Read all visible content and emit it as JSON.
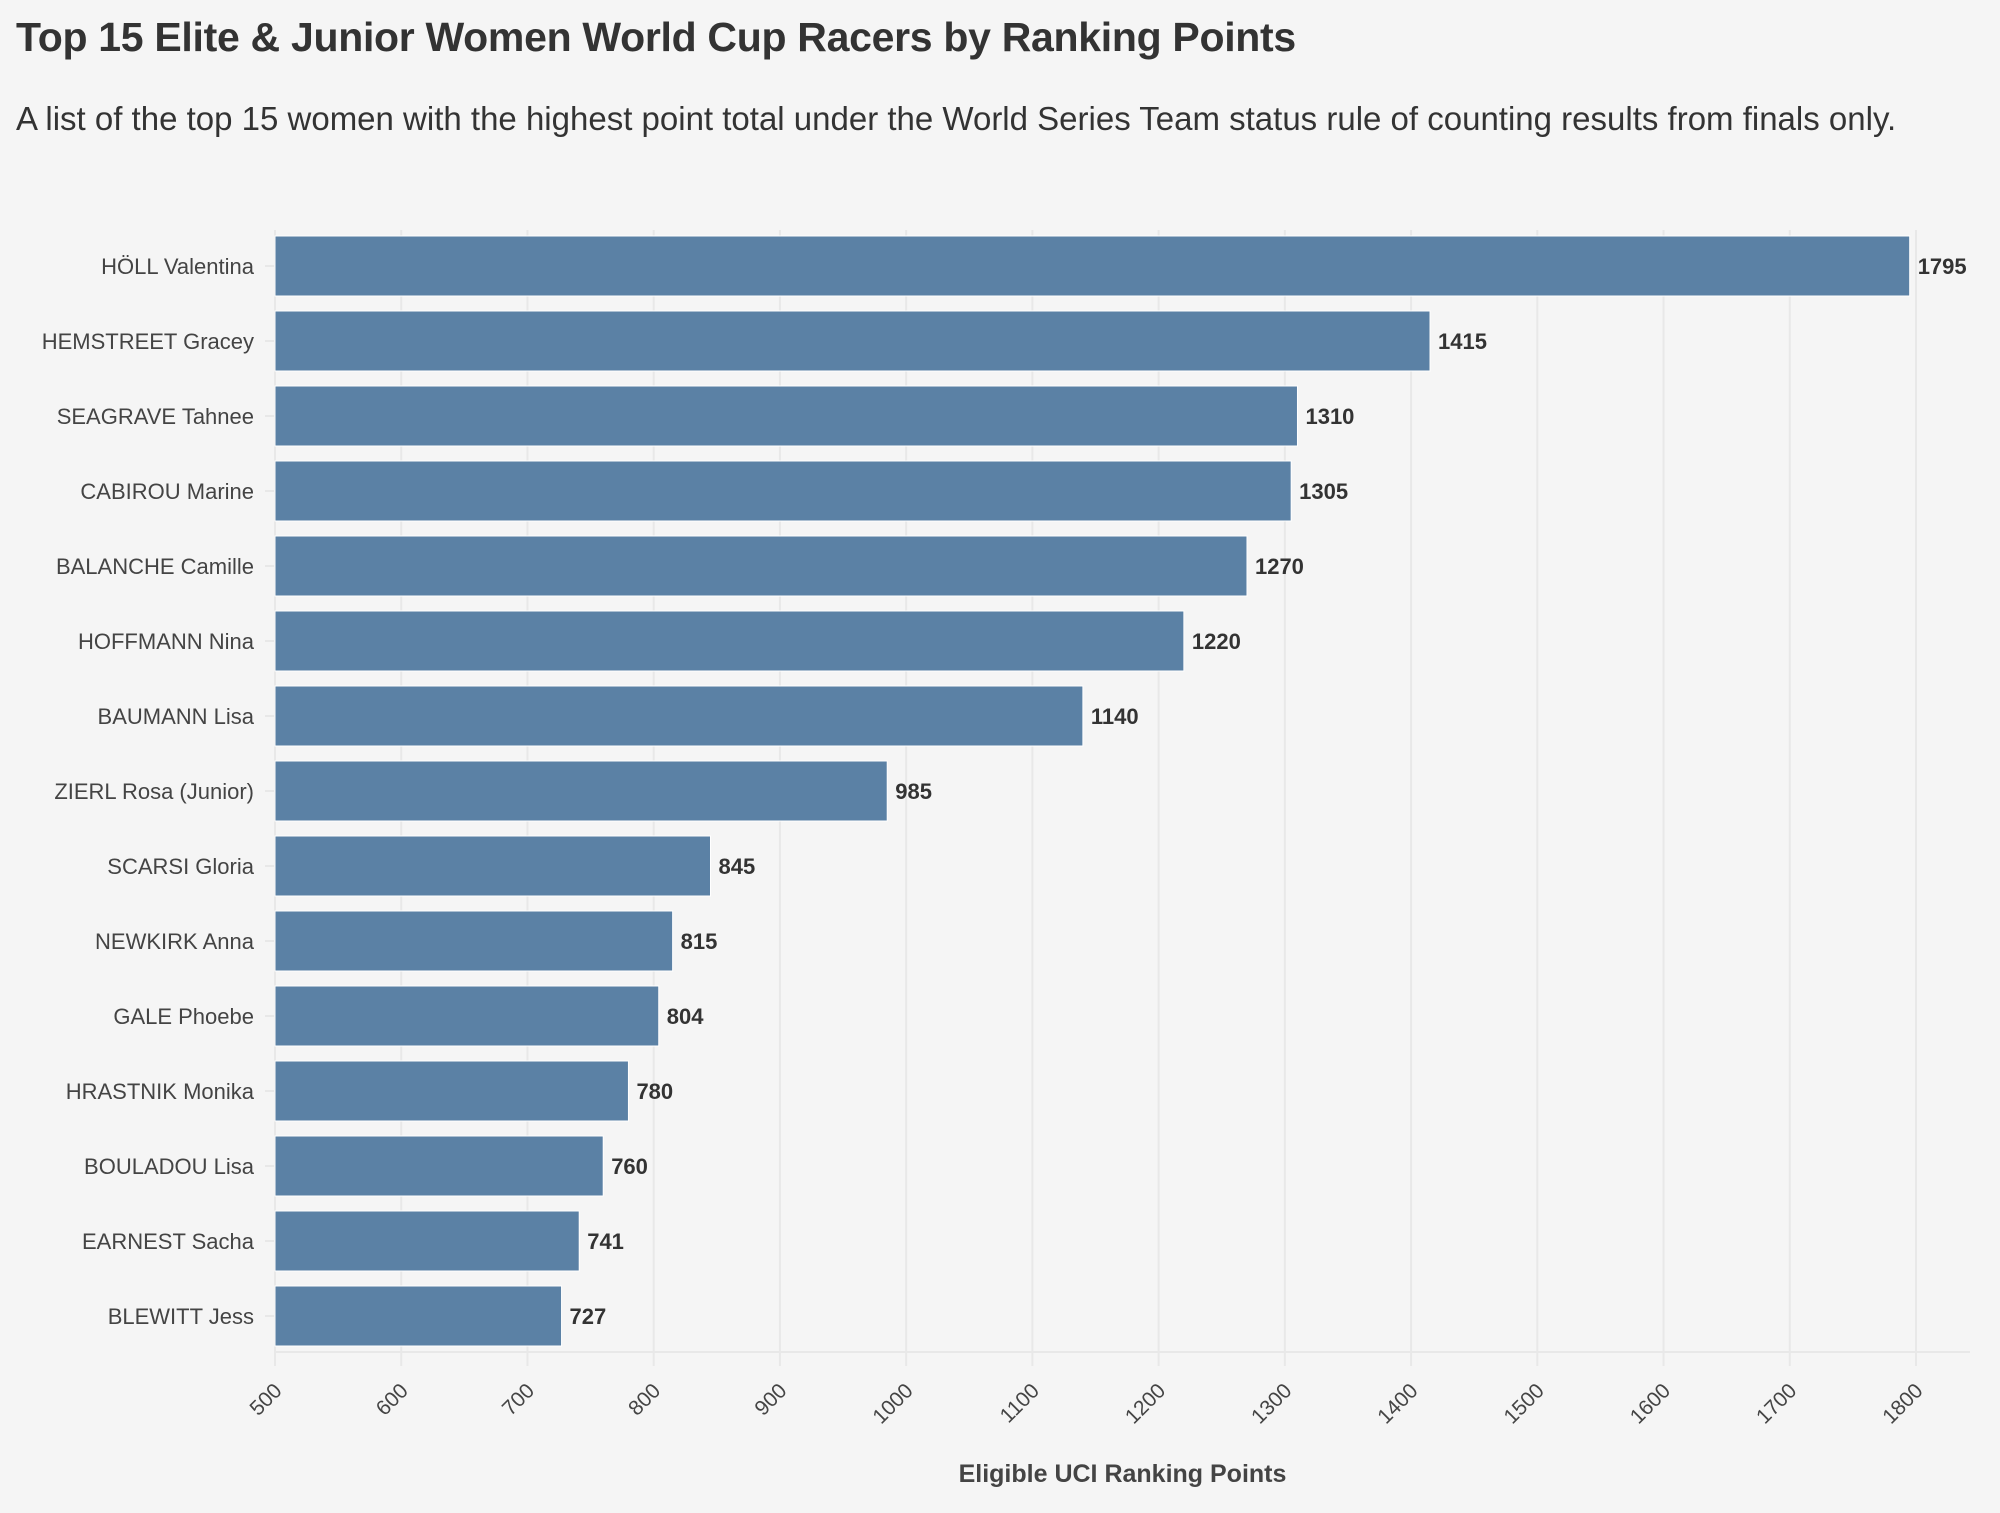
{
  "chart_data": {
    "type": "bar",
    "orientation": "horizontal",
    "title": "Top 15 Elite & Junior Women World Cup Racers by Ranking Points",
    "subtitle": "A list of the top 15 women with the highest point total under the World Series Team status rule of counting results from finals only.",
    "xlabel": "Eligible UCI Ranking Points",
    "ylabel": "",
    "xlim": [
      500,
      1800
    ],
    "xticks": [
      "500",
      "600",
      "700",
      "800",
      "900",
      "1000",
      "1100",
      "1200",
      "1300",
      "1400",
      "1500",
      "1600",
      "1700",
      "1800"
    ],
    "grid": true,
    "bar_color": "#5b81a5",
    "categories": [
      "HÖLL Valentina",
      "HEMSTREET Gracey",
      "SEAGRAVE Tahnee",
      "CABIROU Marine",
      "BALANCHE Camille",
      "HOFFMANN Nina",
      "BAUMANN Lisa",
      "ZIERL Rosa (Junior)",
      "SCARSI Gloria",
      "NEWKIRK Anna",
      "GALE Phoebe",
      "HRASTNIK Monika",
      "BOULADOU Lisa",
      "EARNEST Sacha",
      "BLEWITT Jess"
    ],
    "values": [
      1795,
      1415,
      1310,
      1305,
      1270,
      1220,
      1140,
      985,
      845,
      815,
      804,
      780,
      760,
      741,
      727
    ]
  }
}
